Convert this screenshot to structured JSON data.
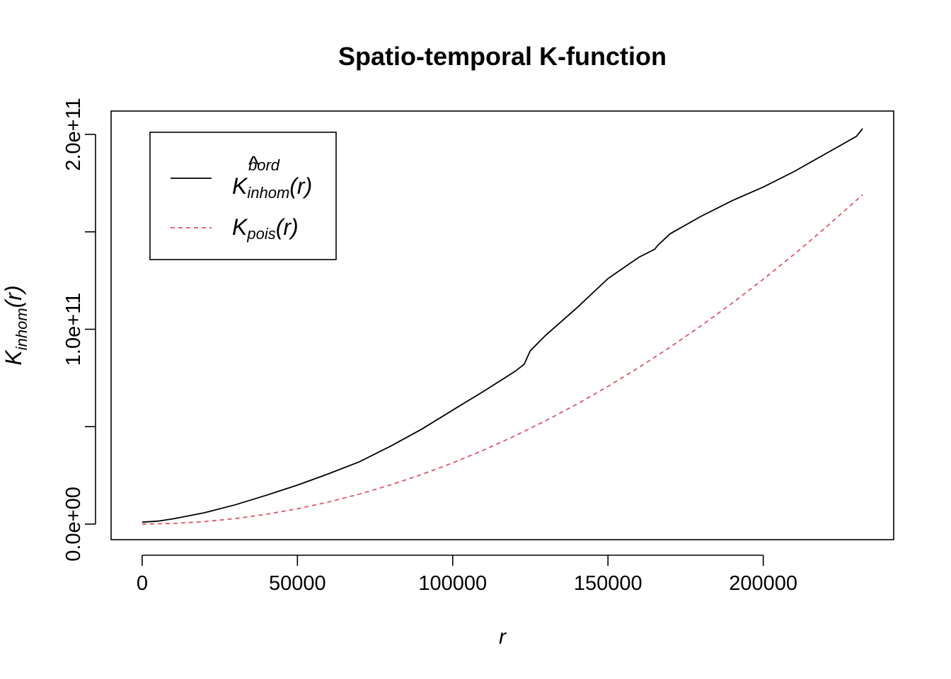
{
  "chart_data": {
    "type": "line",
    "title": "Spatio-temporal K-function",
    "xlabel": "r",
    "ylabel": {
      "base": "K",
      "sub": "inhom",
      "arg": "(r)"
    },
    "xlim": [
      -10000,
      242000
    ],
    "ylim": [
      -8000000000,
      212000000000
    ],
    "x_ticks": [
      0,
      50000,
      100000,
      150000,
      200000
    ],
    "x_tick_labels": [
      "0",
      "50000",
      "100000",
      "150000",
      "200000"
    ],
    "y_ticks": [
      0,
      50000000000,
      100000000000,
      150000000000,
      200000000000
    ],
    "y_tick_labels": [
      "0.0e+00",
      "",
      "1.0e+11",
      "",
      "2.0e+11"
    ],
    "grid": false,
    "legend_position": "top-left",
    "series": [
      {
        "key": "kbord",
        "legend": {
          "base": "K",
          "hat": "^",
          "sub": "inhom",
          "sup": "bord",
          "arg": "(r)"
        },
        "color": "#000000",
        "dash": "solid",
        "x": [
          0,
          5000,
          10000,
          20000,
          30000,
          40000,
          50000,
          60000,
          70000,
          80000,
          90000,
          100000,
          110000,
          120000,
          123000,
          125000,
          130000,
          140000,
          150000,
          160000,
          165000,
          166000,
          170000,
          180000,
          190000,
          200000,
          210000,
          220000,
          230000,
          232000
        ],
        "y": [
          1000000000,
          1500000000,
          2700000000,
          5800000000,
          9900000000,
          14800000000,
          20000000000,
          25800000000,
          32000000000,
          40000000000,
          48700000000,
          58500000000,
          68200000000,
          78300000000,
          82000000000,
          89000000000,
          97000000000,
          111000000000,
          126000000000,
          137000000000,
          141000000000,
          143000000000,
          149000000000,
          158000000000,
          166000000000,
          173000000000,
          181000000000,
          190000000000,
          199000000000,
          203000000000
        ]
      },
      {
        "key": "kpois",
        "legend": {
          "base": "K",
          "sub": "pois",
          "arg": "(r)"
        },
        "color": "#DF536B",
        "dash": "dashed",
        "formula": "pi * r^2",
        "x": [
          0,
          10000,
          20000,
          30000,
          40000,
          50000,
          60000,
          70000,
          80000,
          90000,
          100000,
          110000,
          120000,
          130000,
          140000,
          150000,
          160000,
          170000,
          180000,
          190000,
          200000,
          210000,
          220000,
          232000
        ],
        "y": [
          0,
          314000000,
          1257000000,
          2827000000,
          5027000000,
          7854000000,
          11310000000,
          15394000000,
          20106000000,
          25447000000,
          31416000000,
          38013000000,
          45239000000,
          53093000000,
          61575000000,
          70686000000,
          80425000000,
          90792000000,
          101788000000,
          113411000000,
          125664000000,
          138544000000,
          152053000000,
          169093000000
        ]
      }
    ]
  }
}
